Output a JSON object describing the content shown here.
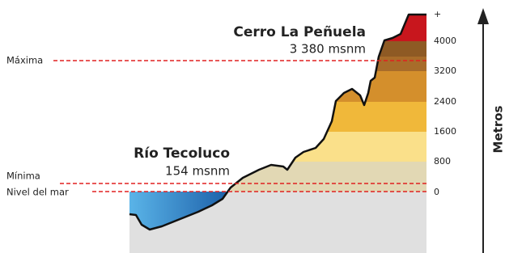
{
  "peak": {
    "name": "Cerro La Peñuela",
    "elevation": "3 380 msnm"
  },
  "river": {
    "name": "Río Tecoluco",
    "elevation": "154 msnm"
  },
  "reference_lines": {
    "max": "Máxima",
    "min": "Mínima",
    "sea": "Nivel del mar"
  },
  "scale": {
    "labels": [
      "+",
      "4000",
      "3200",
      "2400",
      "1600",
      "800",
      "0"
    ],
    "axis_label": "Metros"
  }
}
